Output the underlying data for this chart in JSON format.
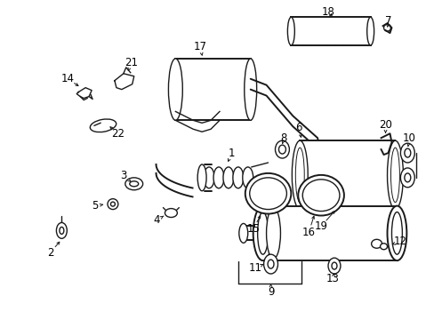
{
  "bg_color": "#ffffff",
  "line_color": "#1a1a1a",
  "text_color": "#000000",
  "fig_width": 4.89,
  "fig_height": 3.6,
  "dpi": 100,
  "label_fs": 8.5,
  "lw": 1.0,
  "lw2": 1.4,
  "lw3": 0.7
}
